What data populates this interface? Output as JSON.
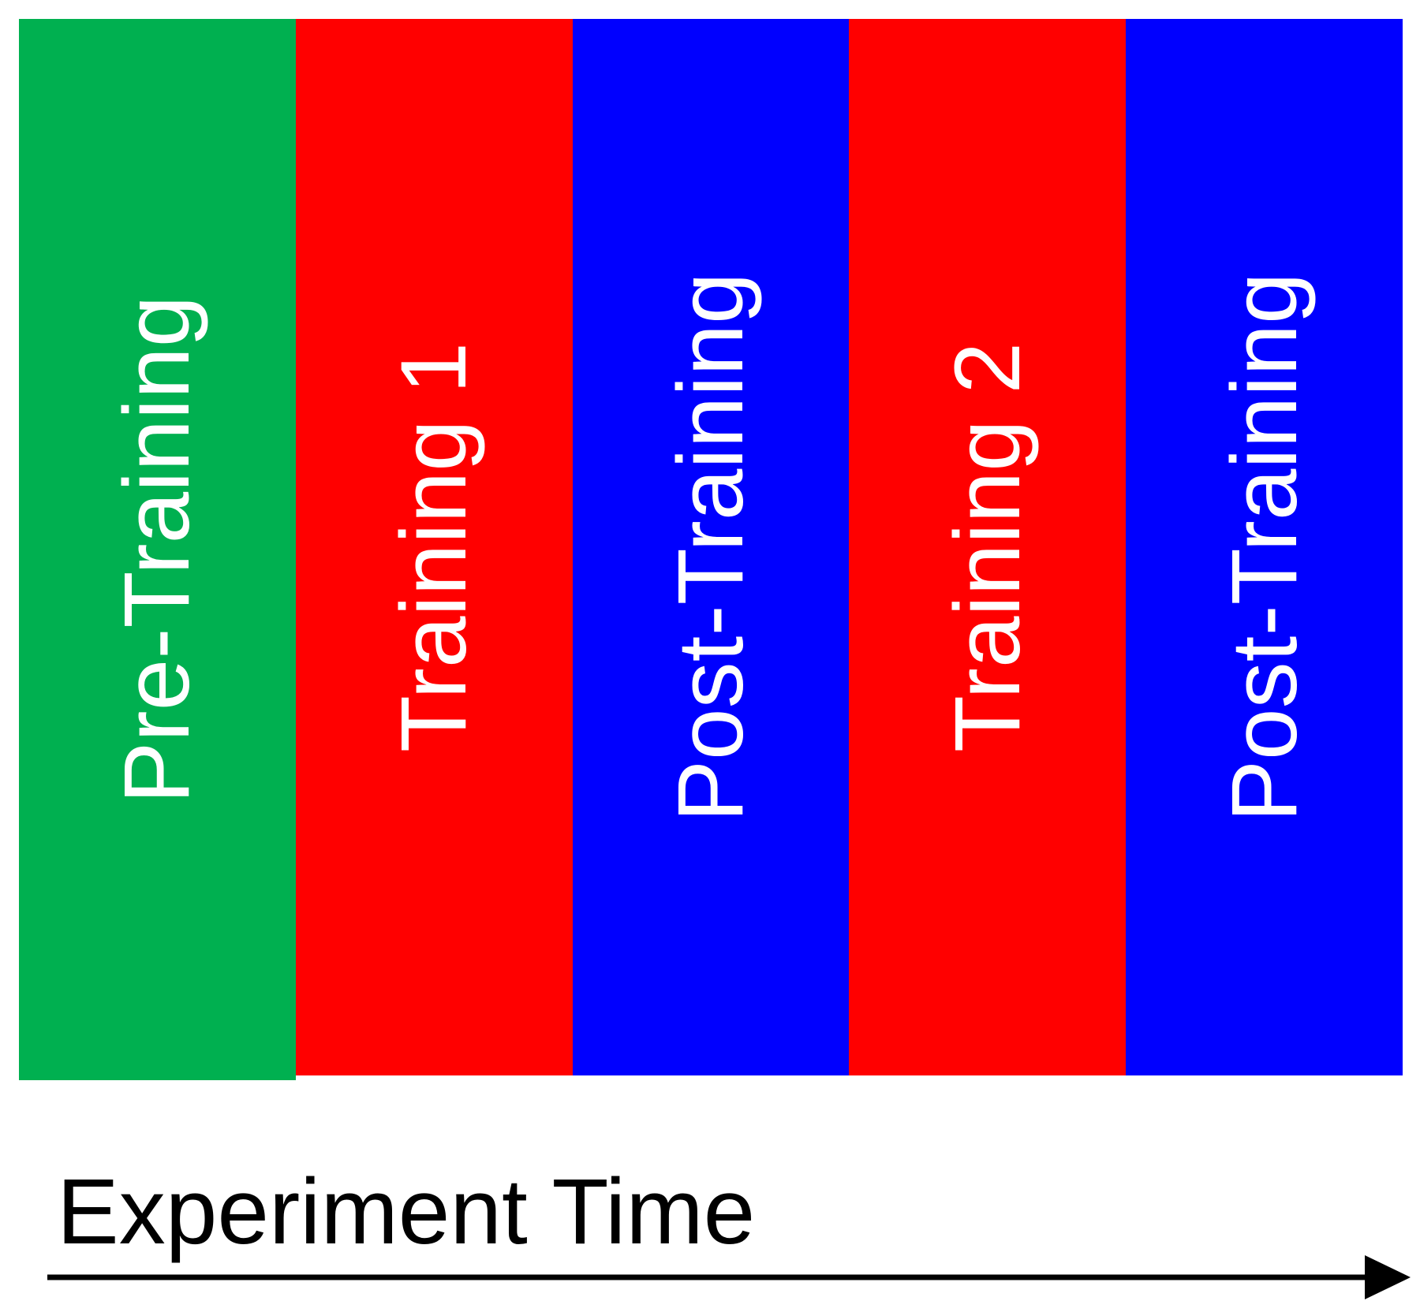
{
  "phases": [
    {
      "label": "Pre-Training",
      "color": "#00b050"
    },
    {
      "label": "Training 1",
      "color": "#ff0000"
    },
    {
      "label": "Post-Training",
      "color": "#0000ff"
    },
    {
      "label": "Training 2",
      "color": "#ff0000"
    },
    {
      "label": "Post-Training",
      "color": "#0000ff"
    }
  ],
  "axis": {
    "label": "Experiment Time",
    "arrow_color": "#000000"
  }
}
